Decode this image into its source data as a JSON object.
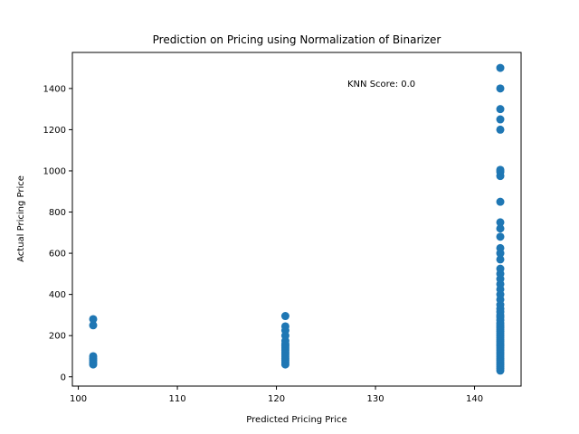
{
  "chart_data": {
    "type": "scatter",
    "title": "Prediction on Pricing using Normalization of Binarizer",
    "xlabel": "Predicted Pricing Price",
    "ylabel": "Actual Pricing Price",
    "annotation": "KNN Score: 0.0",
    "xlim": [
      99.4,
      144.7
    ],
    "ylim": [
      -45,
      1575
    ],
    "x_ticks": [
      100,
      110,
      120,
      130,
      140
    ],
    "y_ticks": [
      0,
      200,
      400,
      600,
      800,
      1000,
      1200,
      1400
    ],
    "grid": false,
    "marker_color": "#1f77b4",
    "series": [
      {
        "points": [
          {
            "x": 101.5,
            "y": 60
          },
          {
            "x": 101.5,
            "y": 70
          },
          {
            "x": 101.5,
            "y": 80
          },
          {
            "x": 101.5,
            "y": 90
          },
          {
            "x": 101.5,
            "y": 100
          },
          {
            "x": 101.5,
            "y": 250
          },
          {
            "x": 101.5,
            "y": 280
          },
          {
            "x": 120.9,
            "y": 60
          },
          {
            "x": 120.9,
            "y": 70
          },
          {
            "x": 120.9,
            "y": 80
          },
          {
            "x": 120.9,
            "y": 90
          },
          {
            "x": 120.9,
            "y": 100
          },
          {
            "x": 120.9,
            "y": 110
          },
          {
            "x": 120.9,
            "y": 120
          },
          {
            "x": 120.9,
            "y": 130
          },
          {
            "x": 120.9,
            "y": 140
          },
          {
            "x": 120.9,
            "y": 150
          },
          {
            "x": 120.9,
            "y": 160
          },
          {
            "x": 120.9,
            "y": 175
          },
          {
            "x": 120.9,
            "y": 200
          },
          {
            "x": 120.9,
            "y": 225
          },
          {
            "x": 120.9,
            "y": 245
          },
          {
            "x": 120.9,
            "y": 295
          },
          {
            "x": 142.6,
            "y": 30
          },
          {
            "x": 142.6,
            "y": 40
          },
          {
            "x": 142.6,
            "y": 50
          },
          {
            "x": 142.6,
            "y": 60
          },
          {
            "x": 142.6,
            "y": 70
          },
          {
            "x": 142.6,
            "y": 80
          },
          {
            "x": 142.6,
            "y": 90
          },
          {
            "x": 142.6,
            "y": 100
          },
          {
            "x": 142.6,
            "y": 110
          },
          {
            "x": 142.6,
            "y": 120
          },
          {
            "x": 142.6,
            "y": 130
          },
          {
            "x": 142.6,
            "y": 140
          },
          {
            "x": 142.6,
            "y": 150
          },
          {
            "x": 142.6,
            "y": 160
          },
          {
            "x": 142.6,
            "y": 170
          },
          {
            "x": 142.6,
            "y": 180
          },
          {
            "x": 142.6,
            "y": 190
          },
          {
            "x": 142.6,
            "y": 200
          },
          {
            "x": 142.6,
            "y": 210
          },
          {
            "x": 142.6,
            "y": 220
          },
          {
            "x": 142.6,
            "y": 230
          },
          {
            "x": 142.6,
            "y": 240
          },
          {
            "x": 142.6,
            "y": 250
          },
          {
            "x": 142.6,
            "y": 260
          },
          {
            "x": 142.6,
            "y": 275
          },
          {
            "x": 142.6,
            "y": 290
          },
          {
            "x": 142.6,
            "y": 300
          },
          {
            "x": 142.6,
            "y": 315
          },
          {
            "x": 142.6,
            "y": 330
          },
          {
            "x": 142.6,
            "y": 350
          },
          {
            "x": 142.6,
            "y": 375
          },
          {
            "x": 142.6,
            "y": 400
          },
          {
            "x": 142.6,
            "y": 425
          },
          {
            "x": 142.6,
            "y": 450
          },
          {
            "x": 142.6,
            "y": 475
          },
          {
            "x": 142.6,
            "y": 500
          },
          {
            "x": 142.6,
            "y": 525
          },
          {
            "x": 142.6,
            "y": 570
          },
          {
            "x": 142.6,
            "y": 600
          },
          {
            "x": 142.6,
            "y": 625
          },
          {
            "x": 142.6,
            "y": 680
          },
          {
            "x": 142.6,
            "y": 720
          },
          {
            "x": 142.6,
            "y": 750
          },
          {
            "x": 142.6,
            "y": 850
          },
          {
            "x": 142.6,
            "y": 975
          },
          {
            "x": 142.6,
            "y": 995
          },
          {
            "x": 142.6,
            "y": 1005
          },
          {
            "x": 142.6,
            "y": 1200
          },
          {
            "x": 142.6,
            "y": 1250
          },
          {
            "x": 142.6,
            "y": 1300
          },
          {
            "x": 142.6,
            "y": 1400
          },
          {
            "x": 142.6,
            "y": 1500
          }
        ]
      }
    ]
  }
}
